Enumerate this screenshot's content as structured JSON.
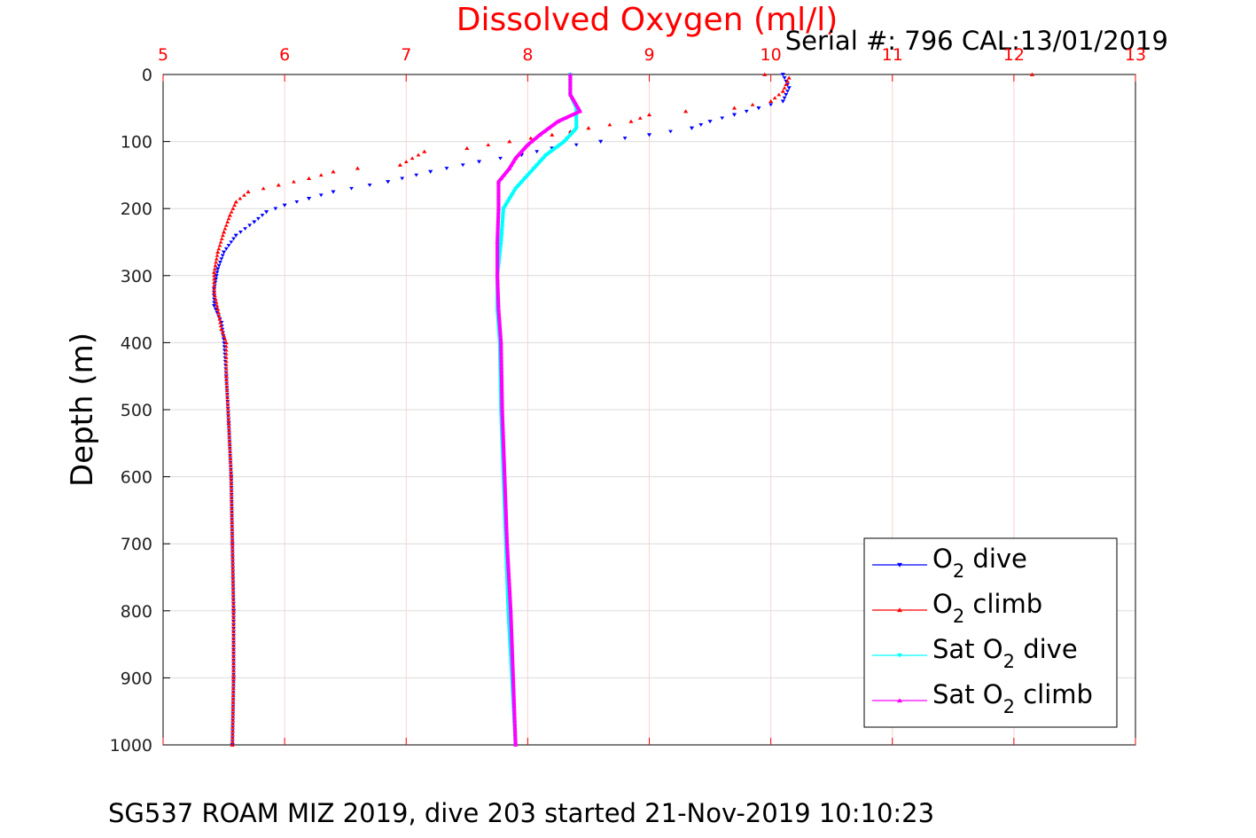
{
  "chart_data": {
    "type": "scatter",
    "title": "Dissolved Oxygen (ml/l)",
    "serial": "Serial #: 796  CAL:13/01/2019",
    "ylabel": "Depth (m)",
    "xlabel": "",
    "caption": "SG537 ROAM MIZ 2019, dive 203 started 21-Nov-2019 10:10:23",
    "xlim": [
      5,
      13
    ],
    "ylim": [
      0,
      1000
    ],
    "y_reversed": true,
    "x_axis_position": "top",
    "xticks": [
      "5",
      "6",
      "7",
      "8",
      "9",
      "10",
      "11",
      "12",
      "13"
    ],
    "yticks": [
      "0",
      "100",
      "200",
      "300",
      "400",
      "500",
      "600",
      "700",
      "800",
      "900",
      "1000"
    ],
    "grid": true,
    "legend_position": "bottom-right",
    "legend": [
      {
        "pre": "O",
        "sub": "2",
        "post": " dive"
      },
      {
        "pre": "O",
        "sub": "2",
        "post": " climb"
      },
      {
        "pre": "Sat O",
        "sub": "2",
        "post": " dive"
      },
      {
        "pre": "Sat O",
        "sub": "2",
        "post": " climb"
      }
    ],
    "series": [
      {
        "name": "O2 dive",
        "color": "#0000ff",
        "marker": "triangle-down",
        "points": [
          [
            10.1,
            0
          ],
          [
            10.15,
            20
          ],
          [
            10.1,
            40
          ],
          [
            9.9,
            50
          ],
          [
            9.7,
            60
          ],
          [
            9.5,
            70
          ],
          [
            9.35,
            80
          ],
          [
            9.0,
            90
          ],
          [
            8.6,
            100
          ],
          [
            8.2,
            110
          ],
          [
            7.95,
            120
          ],
          [
            7.6,
            130
          ],
          [
            7.2,
            145
          ],
          [
            6.85,
            160
          ],
          [
            6.4,
            175
          ],
          [
            6.2,
            185
          ],
          [
            6.0,
            195
          ],
          [
            5.85,
            205
          ],
          [
            5.75,
            220
          ],
          [
            5.6,
            240
          ],
          [
            5.5,
            265
          ],
          [
            5.45,
            290
          ],
          [
            5.42,
            320
          ],
          [
            5.42,
            345
          ],
          [
            5.48,
            370
          ],
          [
            5.5,
            395
          ],
          [
            5.52,
            450
          ],
          [
            5.54,
            520
          ],
          [
            5.56,
            600
          ],
          [
            5.57,
            700
          ],
          [
            5.58,
            800
          ],
          [
            5.58,
            900
          ],
          [
            5.57,
            1000
          ]
        ]
      },
      {
        "name": "O2 climb",
        "color": "#ff0000",
        "marker": "triangle-up",
        "points": [
          [
            9.95,
            0
          ],
          [
            12.15,
            0
          ],
          [
            10.15,
            5
          ],
          [
            10.1,
            25
          ],
          [
            10.0,
            40
          ],
          [
            9.7,
            50
          ],
          [
            9.3,
            55
          ],
          [
            9.0,
            60
          ],
          [
            8.85,
            70
          ],
          [
            8.5,
            80
          ],
          [
            8.2,
            90
          ],
          [
            7.85,
            100
          ],
          [
            7.5,
            110
          ],
          [
            7.15,
            115
          ],
          [
            6.95,
            135
          ],
          [
            6.6,
            140
          ],
          [
            6.4,
            145
          ],
          [
            6.2,
            155
          ],
          [
            5.95,
            165
          ],
          [
            5.7,
            175
          ],
          [
            5.6,
            190
          ],
          [
            5.55,
            210
          ],
          [
            5.5,
            235
          ],
          [
            5.45,
            265
          ],
          [
            5.42,
            295
          ],
          [
            5.42,
            325
          ],
          [
            5.45,
            350
          ],
          [
            5.48,
            380
          ],
          [
            5.52,
            400
          ],
          [
            5.52,
            450
          ],
          [
            5.54,
            520
          ],
          [
            5.56,
            600
          ],
          [
            5.57,
            700
          ],
          [
            5.58,
            800
          ],
          [
            5.58,
            900
          ],
          [
            5.57,
            1000
          ]
        ]
      },
      {
        "name": "Sat O2 dive",
        "color": "#00ffff",
        "marker": "triangle-down",
        "points": [
          [
            8.35,
            0
          ],
          [
            8.35,
            30
          ],
          [
            8.4,
            50
          ],
          [
            8.4,
            80
          ],
          [
            8.3,
            100
          ],
          [
            8.15,
            120
          ],
          [
            8.05,
            140
          ],
          [
            7.9,
            170
          ],
          [
            7.8,
            200
          ],
          [
            7.78,
            250
          ],
          [
            7.75,
            300
          ],
          [
            7.75,
            350
          ],
          [
            7.77,
            400
          ],
          [
            7.78,
            500
          ],
          [
            7.8,
            600
          ],
          [
            7.82,
            700
          ],
          [
            7.84,
            800
          ],
          [
            7.87,
            900
          ],
          [
            7.9,
            1000
          ]
        ]
      },
      {
        "name": "Sat O2 climb",
        "color": "#ff00ff",
        "marker": "triangle-up",
        "points": [
          [
            8.35,
            0
          ],
          [
            8.35,
            30
          ],
          [
            8.43,
            55
          ],
          [
            8.25,
            70
          ],
          [
            8.1,
            90
          ],
          [
            8.0,
            105
          ],
          [
            7.9,
            125
          ],
          [
            7.85,
            140
          ],
          [
            7.76,
            160
          ],
          [
            7.76,
            200
          ],
          [
            7.75,
            250
          ],
          [
            7.75,
            300
          ],
          [
            7.76,
            350
          ],
          [
            7.78,
            400
          ],
          [
            7.79,
            500
          ],
          [
            7.81,
            600
          ],
          [
            7.83,
            700
          ],
          [
            7.86,
            800
          ],
          [
            7.88,
            900
          ],
          [
            7.9,
            1000
          ]
        ]
      }
    ]
  }
}
